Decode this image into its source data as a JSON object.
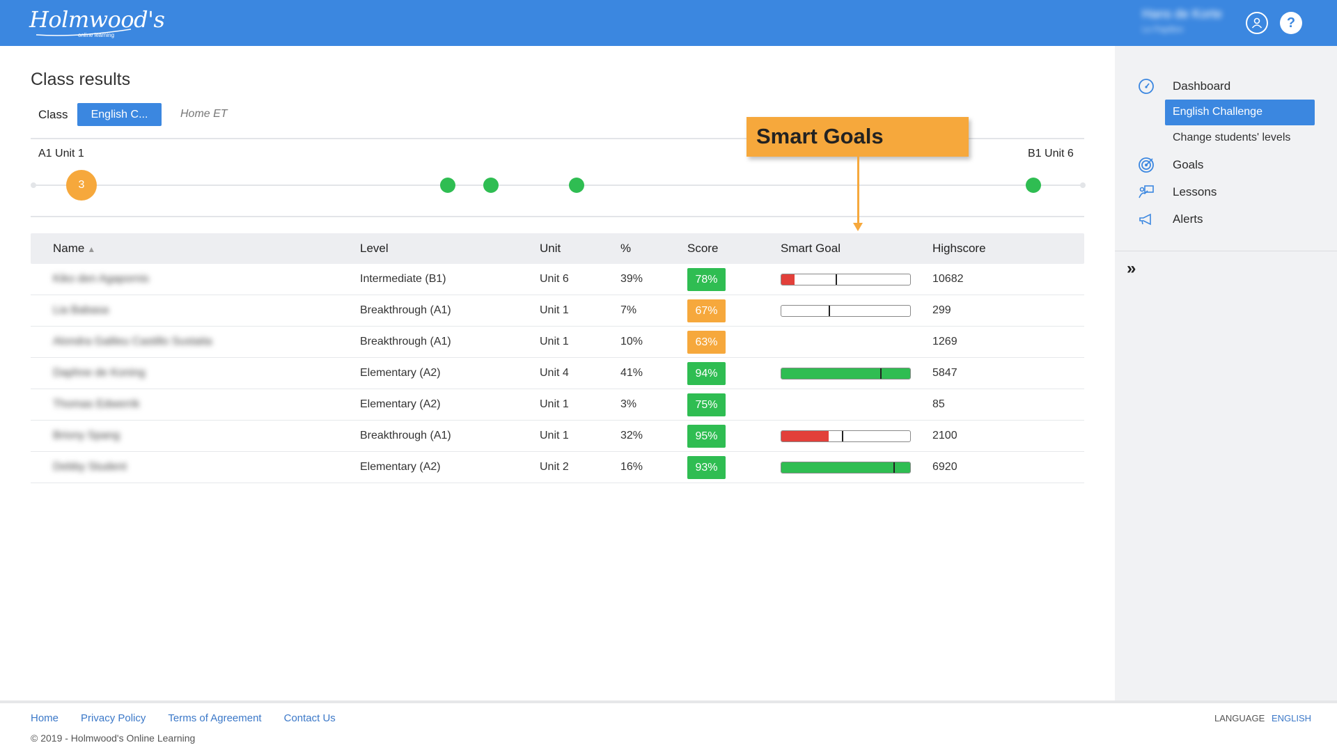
{
  "header": {
    "logo_main": "Holmwood's",
    "logo_sub": "online learning",
    "user_name": "Hans de Korte",
    "user_role": "Le Papillon",
    "help_label": "?",
    "bg_color": "#3b87e0"
  },
  "sidebar": {
    "items": [
      {
        "label": "Dashboard",
        "icon": "dashboard-gauge-icon"
      },
      {
        "label": "English Challenge",
        "active": true
      },
      {
        "label": "Change students' levels"
      },
      {
        "label": "Goals",
        "icon": "target-icon"
      },
      {
        "label": "Lessons",
        "icon": "teacher-board-icon"
      },
      {
        "label": "Alerts",
        "icon": "megaphone-icon"
      }
    ],
    "collapse_label": "»"
  },
  "main": {
    "title": "Class results",
    "class_label": "Class",
    "class_value": "English C...",
    "class_note": "Home ET",
    "progress": {
      "start_label": "A1 Unit 1",
      "end_label": "B1 Unit 6",
      "current_count": "3",
      "current_color": "#f6a83c",
      "dot_color": "#2fbd52"
    },
    "callout": "Smart Goals",
    "table": {
      "headers": [
        "Name",
        "Level",
        "Unit",
        "%",
        "Score",
        "Smart Goal",
        "Highscore"
      ],
      "sort_indicator": "▲",
      "rows": [
        {
          "name": "Kiko den Agapornis",
          "level": "Intermediate (B1)",
          "unit": "Unit 6",
          "pct": "39%",
          "score": "78%",
          "score_color": "#2fbd52",
          "goal": {
            "fill": 0.1,
            "mark": 0.42,
            "color": "#e2403a"
          },
          "highscore": "10682"
        },
        {
          "name": "Lia Babasa",
          "level": "Breakthrough (A1)",
          "unit": "Unit 1",
          "pct": "7%",
          "score": "67%",
          "score_color": "#f6a83c",
          "goal": {
            "fill": 0,
            "mark": 0.37,
            "color": "#e2403a"
          },
          "highscore": "299"
        },
        {
          "name": "Alondra Galileu Castillo Sustaita",
          "level": "Breakthrough (A1)",
          "unit": "Unit 1",
          "pct": "10%",
          "score": "63%",
          "score_color": "#f6a83c",
          "goal": null,
          "highscore": "1269"
        },
        {
          "name": "Daphne de Koning",
          "level": "Elementary (A2)",
          "unit": "Unit 4",
          "pct": "41%",
          "score": "94%",
          "score_color": "#2fbd52",
          "goal": {
            "fill": 1,
            "mark": 0.77,
            "color": "#2fbd52"
          },
          "highscore": "5847"
        },
        {
          "name": "Thomas Edwerrik",
          "level": "Elementary (A2)",
          "unit": "Unit 1",
          "pct": "3%",
          "score": "75%",
          "score_color": "#2fbd52",
          "goal": null,
          "highscore": "85"
        },
        {
          "name": "Briony Spang",
          "level": "Breakthrough (A1)",
          "unit": "Unit 1",
          "pct": "32%",
          "score": "95%",
          "score_color": "#2fbd52",
          "goal": {
            "fill": 0.37,
            "mark": 0.47,
            "color": "#e2403a"
          },
          "highscore": "2100"
        },
        {
          "name": "Debby Student",
          "level": "Elementary (A2)",
          "unit": "Unit 2",
          "pct": "16%",
          "score": "93%",
          "score_color": "#2fbd52",
          "goal": {
            "fill": 1,
            "mark": 0.87,
            "color": "#2fbd52"
          },
          "highscore": "6920"
        }
      ]
    }
  },
  "footer": {
    "links": [
      "Home",
      "Privacy Policy",
      "Terms of Agreement",
      "Contact Us"
    ],
    "copyright": "© 2019 - Holmwood's Online Learning",
    "language_label": "LANGUAGE",
    "language_value": "ENGLISH"
  }
}
